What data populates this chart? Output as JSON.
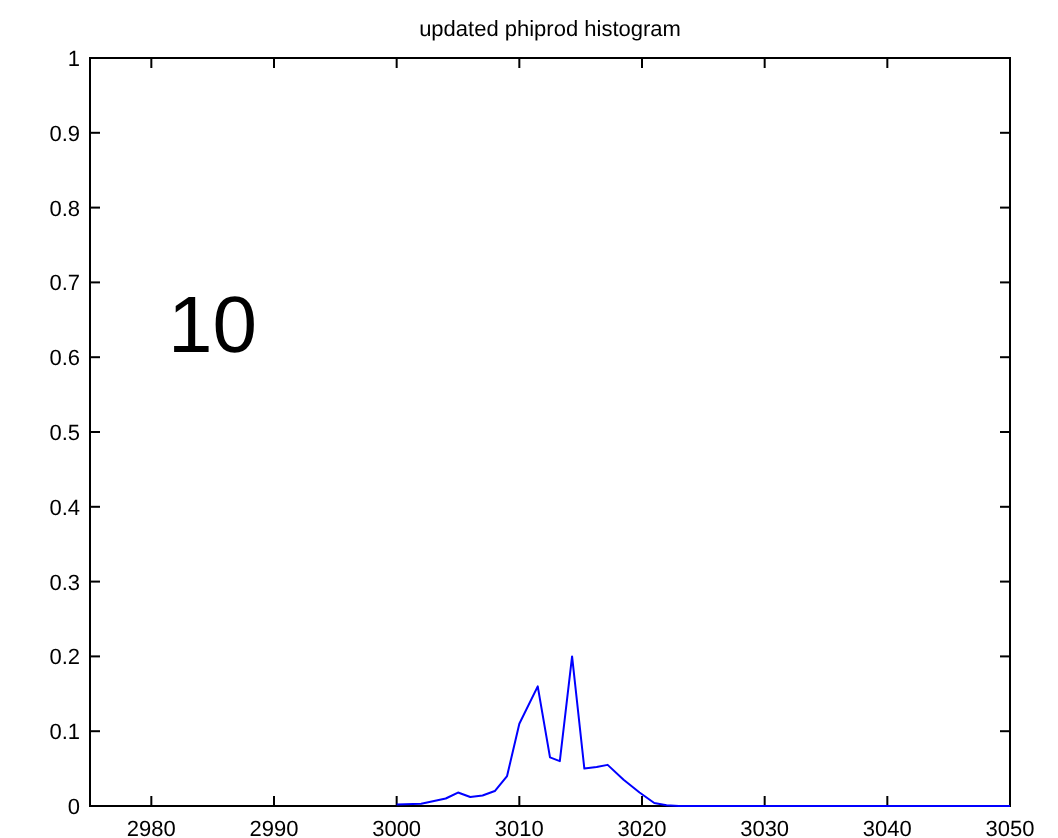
{
  "chart_data": {
    "type": "line",
    "title": "updated phiprod histogram",
    "annotations": [
      "10"
    ],
    "x": [
      3000,
      3002,
      3004,
      3005,
      3006,
      3007,
      3008,
      3009,
      3010,
      3011.5,
      3012.5,
      3013.3,
      3014.3,
      3015.3,
      3016.3,
      3017.2,
      3018.5,
      3019.8,
      3021,
      3022,
      3023,
      3050
    ],
    "series": [
      {
        "color": "#0000ff",
        "values": [
          0.002,
          0.003,
          0.01,
          0.018,
          0.012,
          0.014,
          0.02,
          0.04,
          0.11,
          0.16,
          0.065,
          0.06,
          0.2,
          0.05,
          0.052,
          0.055,
          0.035,
          0.018,
          0.004,
          0.001,
          0,
          0
        ]
      }
    ],
    "xlim": [
      2975,
      3050
    ],
    "xticks": [
      2980,
      2990,
      3000,
      3010,
      3020,
      3030,
      3040,
      3050
    ],
    "ylim": [
      0,
      1
    ],
    "yticks": [
      0,
      0.1,
      0.2,
      0.3,
      0.4,
      0.5,
      0.6,
      0.7,
      0.8,
      0.9,
      1
    ]
  }
}
